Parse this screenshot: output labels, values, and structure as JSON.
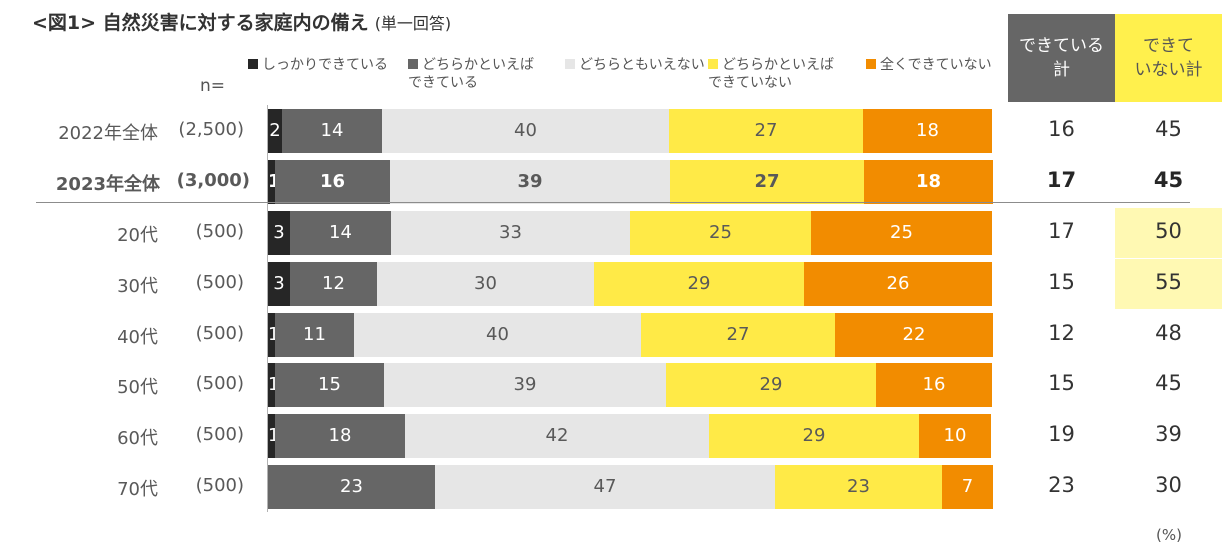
{
  "title": {
    "main": "<図1> 自然災害に対する家庭内の備え",
    "sub": "(単一回答)"
  },
  "n_label": "n=",
  "header": {
    "yes_total": [
      "できている",
      "計"
    ],
    "no_total": [
      "できて",
      "いない計"
    ]
  },
  "unit": "(%)",
  "colors": {
    "c1": "#262626",
    "c2": "#666666",
    "c3": "#E6E6E6",
    "c4": "#FFEA47",
    "c5": "#F28C00",
    "yes_header": "#666666",
    "no_header": "#FFF04D",
    "highlight": "#FFF9B3"
  },
  "chart_data": {
    "type": "bar",
    "orientation": "horizontal",
    "stacked": true,
    "xlim": [
      0,
      100
    ],
    "legend_position": "top",
    "categories": [
      "2022年全体",
      "2023年全体",
      "20代",
      "30代",
      "40代",
      "50代",
      "60代",
      "70代"
    ],
    "n": [
      "(2,500)",
      "(3,000)",
      "(500)",
      "(500)",
      "(500)",
      "(500)",
      "(500)",
      "(500)"
    ],
    "series": [
      {
        "name": "しっかりできている",
        "color": "#262626",
        "values": [
          2,
          1,
          3,
          3,
          1,
          1,
          1,
          0
        ]
      },
      {
        "name": "どちらかといえばできている",
        "color": "#666666",
        "values": [
          14,
          16,
          14,
          12,
          11,
          15,
          18,
          23
        ]
      },
      {
        "name": "どちらともいえない",
        "color": "#E6E6E6",
        "values": [
          40,
          39,
          33,
          30,
          40,
          39,
          42,
          47
        ]
      },
      {
        "name": "どちらかといえばできていない",
        "color": "#FFEA47",
        "values": [
          27,
          27,
          25,
          29,
          27,
          29,
          29,
          23
        ]
      },
      {
        "name": "全くできていない",
        "color": "#F28C00",
        "values": [
          18,
          18,
          25,
          26,
          22,
          16,
          10,
          7
        ]
      }
    ],
    "legend_lines": [
      [
        "しっかりできている"
      ],
      [
        "どちらかといえば",
        "できている"
      ],
      [
        "どちらともいえない"
      ],
      [
        "どちらかといえば",
        "できていない"
      ],
      [
        "全くできていない"
      ]
    ],
    "totals_yes": [
      16,
      17,
      17,
      15,
      12,
      15,
      19,
      23
    ],
    "totals_no": [
      45,
      45,
      50,
      55,
      48,
      45,
      39,
      30
    ],
    "bold_rows": [
      1
    ],
    "highlight_no_rows": [
      2,
      3
    ]
  }
}
